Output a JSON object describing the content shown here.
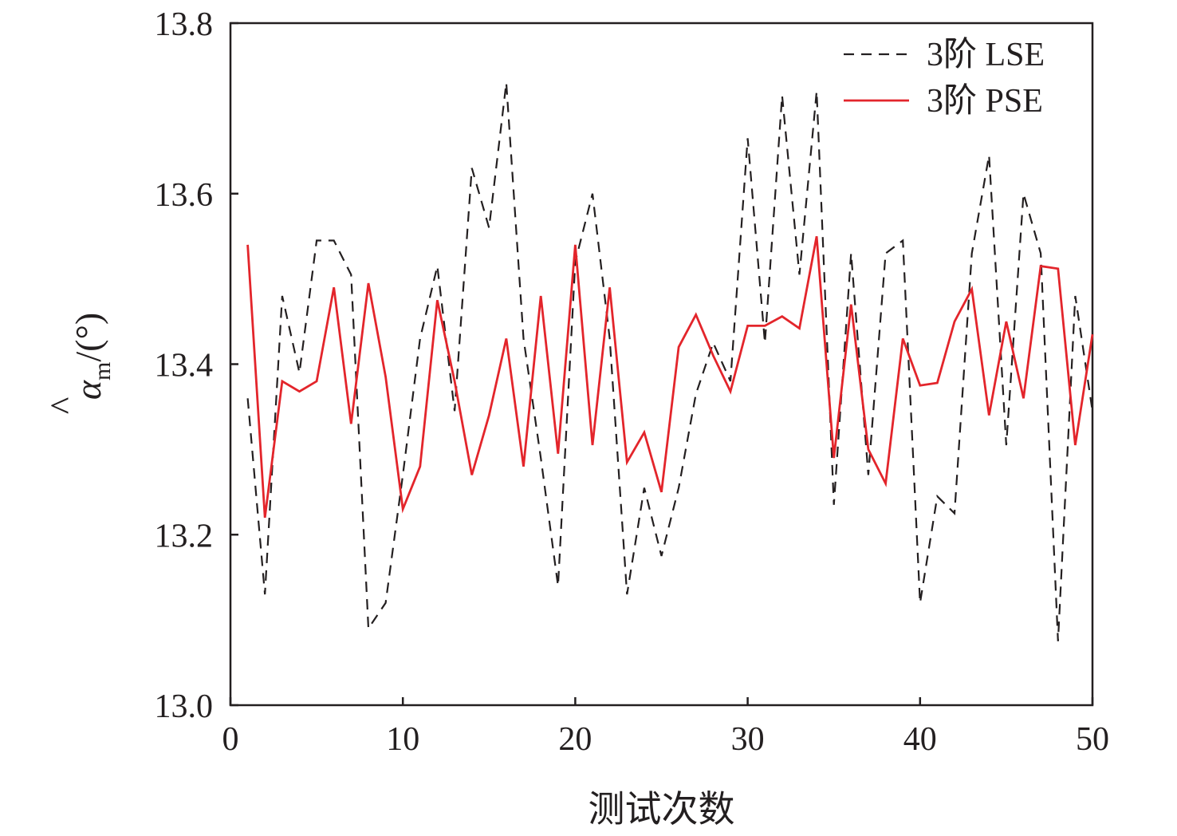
{
  "chart_data": {
    "type": "line",
    "title": "",
    "xlabel": "测试次数",
    "ylabel": {
      "hat": "^",
      "symbol": "α",
      "subscript": "m",
      "unit": "/(°)"
    },
    "xlim": [
      0,
      50
    ],
    "ylim": [
      13.0,
      13.8
    ],
    "xticks": [
      "0",
      "10",
      "20",
      "30",
      "40",
      "50"
    ],
    "yticks": [
      "13.0",
      "13.2",
      "13.4",
      "13.6",
      "13.8"
    ],
    "grid": false,
    "legend_position": "top-right",
    "x": [
      1,
      2,
      3,
      4,
      5,
      6,
      7,
      8,
      9,
      10,
      11,
      12,
      13,
      14,
      15,
      16,
      17,
      18,
      19,
      20,
      21,
      22,
      23,
      24,
      25,
      26,
      27,
      28,
      29,
      30,
      31,
      32,
      33,
      34,
      35,
      36,
      37,
      38,
      39,
      40,
      41,
      42,
      43,
      44,
      45,
      46,
      47,
      48,
      49,
      50
    ],
    "series": [
      {
        "name": "3阶 LSE",
        "color": "#231f20",
        "style": "dashed",
        "values": [
          13.36,
          13.13,
          13.48,
          13.39,
          13.545,
          13.545,
          13.505,
          13.09,
          13.12,
          13.27,
          13.43,
          13.515,
          13.345,
          13.63,
          13.56,
          13.73,
          13.43,
          13.29,
          13.14,
          13.52,
          13.6,
          13.43,
          13.13,
          13.255,
          13.175,
          13.255,
          13.365,
          13.425,
          13.38,
          13.665,
          13.425,
          13.715,
          13.505,
          13.72,
          13.235,
          13.53,
          13.27,
          13.53,
          13.545,
          13.12,
          13.245,
          13.225,
          13.53,
          13.645,
          13.305,
          13.6,
          13.53,
          13.075,
          13.48,
          13.345
        ]
      },
      {
        "name": "3阶 PSE",
        "color": "#e3252b",
        "style": "solid",
        "values": [
          13.54,
          13.22,
          13.38,
          13.368,
          13.38,
          13.49,
          13.33,
          13.495,
          13.385,
          13.23,
          13.28,
          13.475,
          13.38,
          13.27,
          13.34,
          13.43,
          13.28,
          13.48,
          13.295,
          13.54,
          13.305,
          13.49,
          13.285,
          13.32,
          13.25,
          13.42,
          13.458,
          13.41,
          13.368,
          13.445,
          13.445,
          13.456,
          13.442,
          13.55,
          13.29,
          13.47,
          13.3,
          13.26,
          13.43,
          13.375,
          13.378,
          13.45,
          13.488,
          13.34,
          13.45,
          13.36,
          13.515,
          13.512,
          13.305,
          13.435
        ]
      }
    ]
  }
}
